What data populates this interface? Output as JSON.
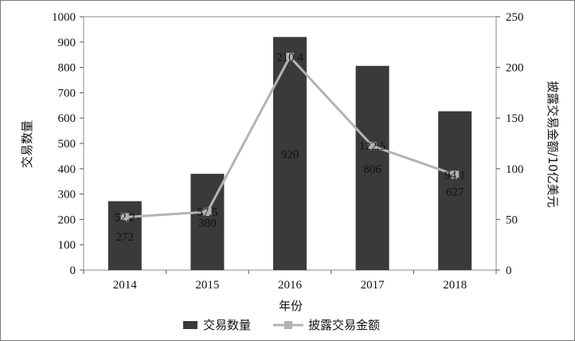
{
  "chart_data": {
    "type": "bar",
    "categories": [
      "2014",
      "2015",
      "2016",
      "2017",
      "2018"
    ],
    "series": [
      {
        "name": "交易数量",
        "type": "bar",
        "axis": "left",
        "values": [
          272,
          380,
          920,
          806,
          627
        ],
        "color": "#3a3a3a"
      },
      {
        "name": "披露交易金额",
        "type": "line",
        "axis": "right",
        "values": [
          52.2,
          57.5,
          210.4,
          122.5,
          94.1
        ],
        "color": "#b4b4b4"
      }
    ],
    "xlabel": "年份",
    "ylabel": "交易数量",
    "y2label": "披露交易金额/10亿美元",
    "ylim": [
      0,
      1000
    ],
    "y2lim": [
      0,
      250
    ],
    "yticks": [
      "0",
      "100",
      "200",
      "300",
      "400",
      "500",
      "600",
      "700",
      "800",
      "900",
      "1000"
    ],
    "y2ticks": [
      "0",
      "50",
      "100",
      "150",
      "200",
      "250"
    ],
    "bar_labels": [
      "272",
      "380",
      "920",
      "806",
      "627"
    ],
    "line_labels": [
      "52.2",
      "57.5",
      "210.4",
      "122.5",
      "94.1"
    ],
    "legend_position": "bottom",
    "grid": false
  }
}
